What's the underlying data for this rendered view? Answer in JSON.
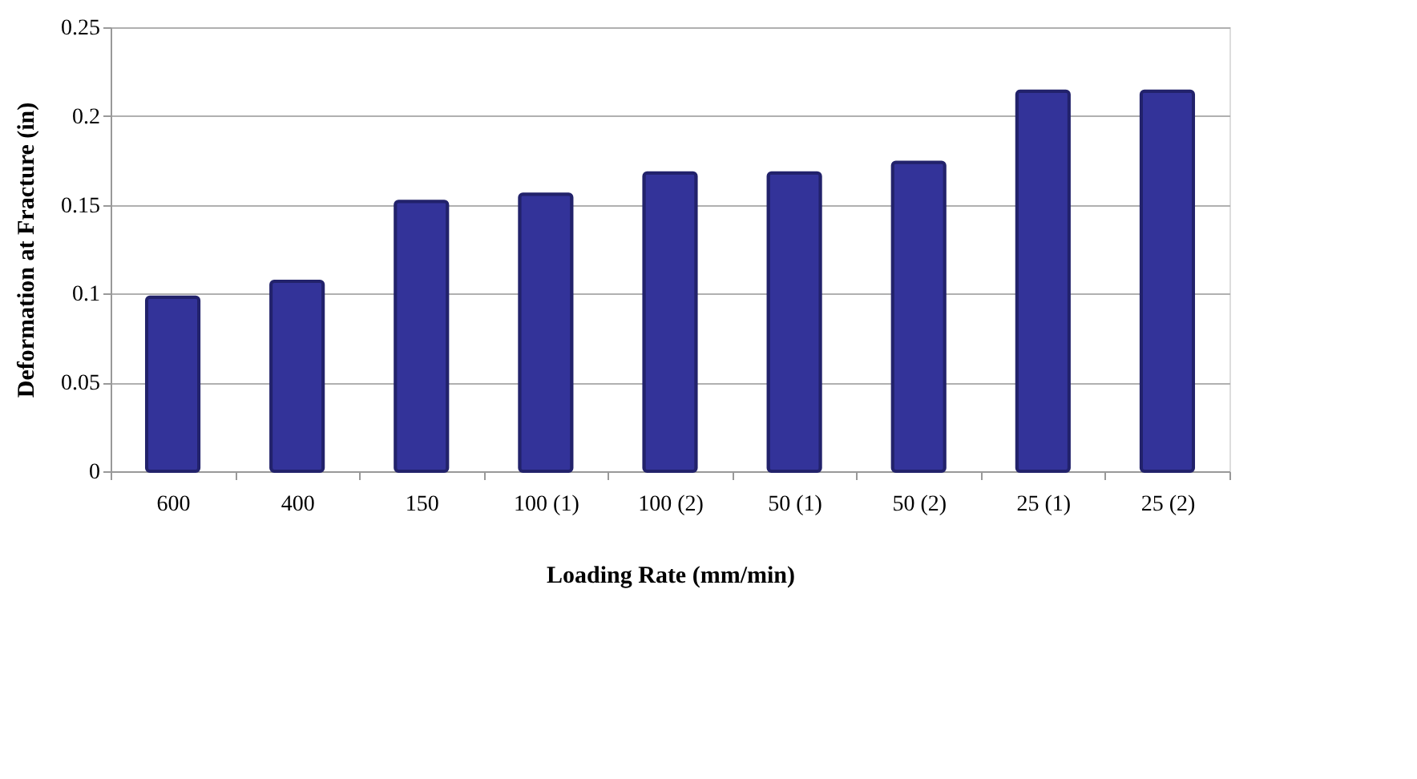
{
  "chart_data": {
    "type": "bar",
    "xlabel": "Loading Rate (mm/min)",
    "ylabel": "Deformation at Fracture (in)",
    "categories": [
      "600",
      "400",
      "150",
      "100 (1)",
      "100 (2)",
      "50 (1)",
      "50 (2)",
      "25 (1)",
      "25 (2)"
    ],
    "values": [
      0.098,
      0.107,
      0.152,
      0.156,
      0.168,
      0.168,
      0.174,
      0.214,
      0.214
    ],
    "color": "#333399",
    "ylim": [
      0,
      0.25
    ],
    "yticks": [
      0,
      0.05,
      0.1,
      0.15,
      0.2,
      0.25
    ],
    "grid": "y"
  }
}
